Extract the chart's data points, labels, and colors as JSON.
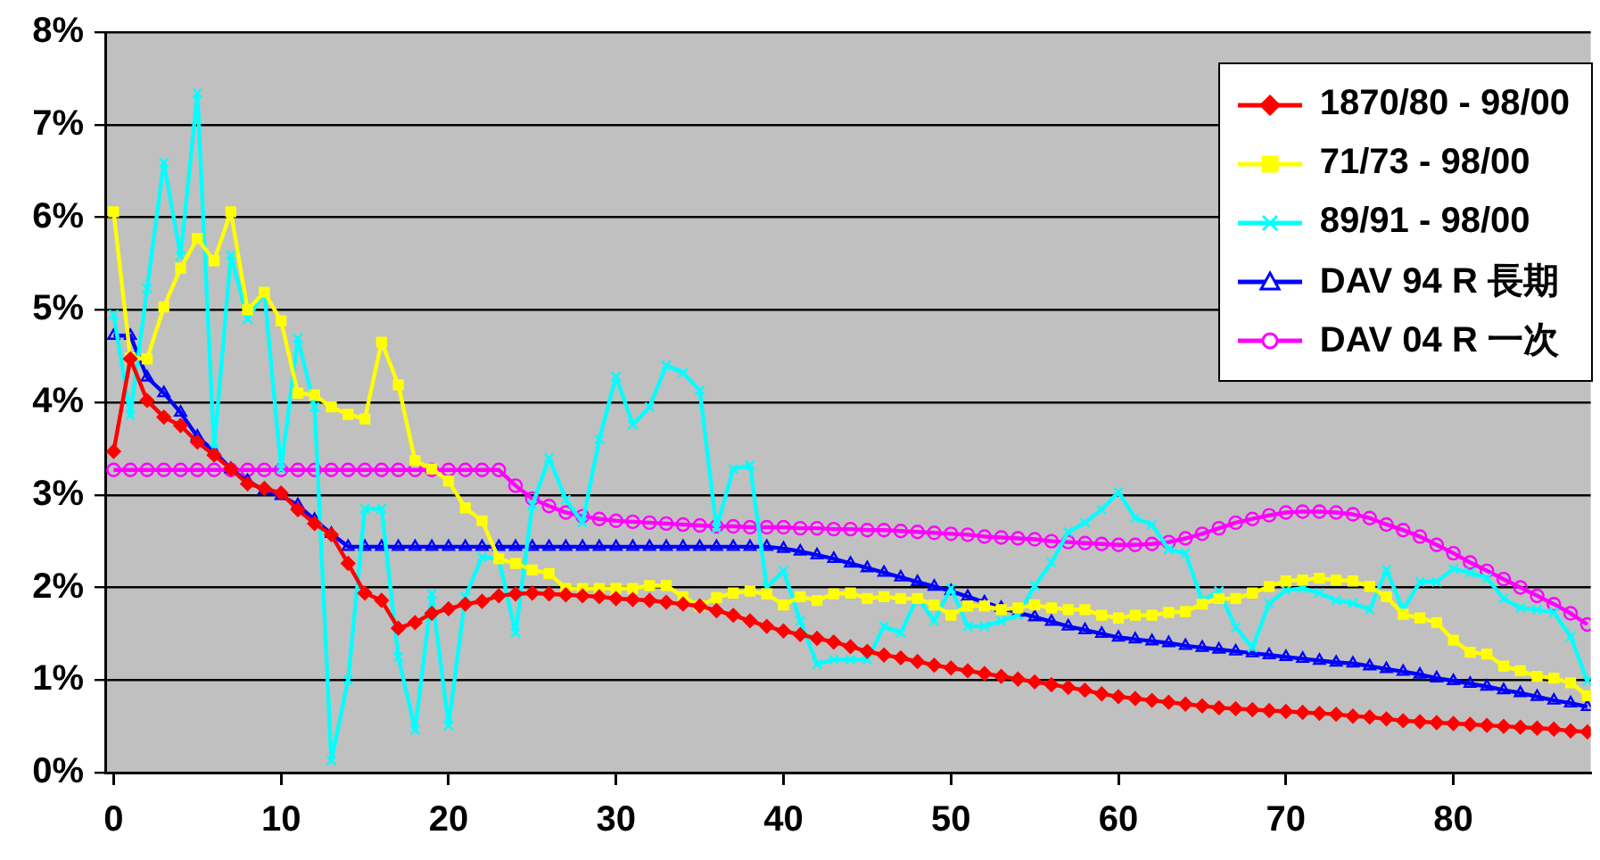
{
  "chart_data": {
    "type": "line",
    "x": [
      0,
      1,
      2,
      3,
      4,
      5,
      6,
      7,
      8,
      9,
      10,
      11,
      12,
      13,
      14,
      15,
      16,
      17,
      18,
      19,
      20,
      21,
      22,
      23,
      24,
      25,
      26,
      27,
      28,
      29,
      30,
      31,
      32,
      33,
      34,
      35,
      36,
      37,
      38,
      39,
      40,
      41,
      42,
      43,
      44,
      45,
      46,
      47,
      48,
      49,
      50,
      51,
      52,
      53,
      54,
      55,
      56,
      57,
      58,
      59,
      60,
      61,
      62,
      63,
      64,
      65,
      66,
      67,
      68,
      69,
      70,
      71,
      72,
      73,
      74,
      75,
      76,
      77,
      78,
      79,
      80,
      81,
      82,
      83,
      84,
      85,
      86,
      87,
      88
    ],
    "xlim": [
      -0.5,
      88.2
    ],
    "xticks": [
      0,
      10,
      20,
      30,
      40,
      50,
      60,
      70,
      80
    ],
    "ylim": [
      0,
      8
    ],
    "yticks": [
      {
        "value": 0,
        "label": "0%"
      },
      {
        "value": 1,
        "label": "1%"
      },
      {
        "value": 2,
        "label": "2%"
      },
      {
        "value": 3,
        "label": "3%"
      },
      {
        "value": 4,
        "label": "4%"
      },
      {
        "value": 5,
        "label": "5%"
      },
      {
        "value": 6,
        "label": "6%"
      },
      {
        "value": 7,
        "label": "7%"
      },
      {
        "value": 8,
        "label": "8%"
      }
    ],
    "grid": "y",
    "legend": "top right",
    "series": [
      {
        "name": "1870/80 - 98/00",
        "color": "#ff0000",
        "marker": "diamond",
        "values": [
          3.47,
          4.47,
          4.02,
          3.84,
          3.75,
          3.57,
          3.43,
          3.28,
          3.12,
          3.07,
          3.02,
          2.84,
          2.69,
          2.57,
          2.26,
          1.94,
          1.86,
          1.56,
          1.62,
          1.72,
          1.77,
          1.82,
          1.85,
          1.91,
          1.93,
          1.94,
          1.93,
          1.92,
          1.91,
          1.9,
          1.88,
          1.87,
          1.86,
          1.84,
          1.82,
          1.8,
          1.75,
          1.7,
          1.64,
          1.58,
          1.53,
          1.49,
          1.45,
          1.41,
          1.36,
          1.31,
          1.27,
          1.24,
          1.2,
          1.16,
          1.13,
          1.1,
          1.07,
          1.04,
          1.01,
          0.98,
          0.95,
          0.92,
          0.89,
          0.85,
          0.82,
          0.8,
          0.78,
          0.76,
          0.74,
          0.72,
          0.7,
          0.69,
          0.68,
          0.67,
          0.66,
          0.65,
          0.64,
          0.63,
          0.61,
          0.6,
          0.58,
          0.56,
          0.55,
          0.54,
          0.53,
          0.52,
          0.51,
          0.5,
          0.49,
          0.48,
          0.47,
          0.45,
          0.44
        ]
      },
      {
        "name": "71/73 - 98/00",
        "color": "#ffff00",
        "marker": "square",
        "values": [
          6.06,
          4.48,
          4.47,
          5.03,
          5.45,
          5.77,
          5.53,
          6.06,
          5.0,
          5.19,
          4.88,
          4.1,
          4.08,
          3.95,
          3.87,
          3.82,
          4.65,
          4.19,
          3.37,
          3.28,
          3.15,
          2.86,
          2.72,
          2.31,
          2.26,
          2.19,
          2.15,
          1.99,
          1.99,
          1.99,
          1.99,
          1.99,
          2.02,
          2.02,
          1.9,
          1.8,
          1.89,
          1.94,
          1.96,
          1.93,
          1.81,
          1.9,
          1.86,
          1.93,
          1.94,
          1.88,
          1.9,
          1.88,
          1.88,
          1.81,
          1.7,
          1.8,
          1.8,
          1.76,
          1.78,
          1.81,
          1.78,
          1.76,
          1.76,
          1.7,
          1.67,
          1.7,
          1.7,
          1.73,
          1.74,
          1.82,
          1.88,
          1.88,
          1.94,
          2.01,
          2.07,
          2.08,
          2.1,
          2.08,
          2.07,
          2.01,
          1.9,
          1.71,
          1.67,
          1.62,
          1.43,
          1.3,
          1.28,
          1.15,
          1.1,
          1.04,
          1.02,
          0.97,
          0.83
        ]
      },
      {
        "name": "89/91 - 98/00",
        "color": "#00ffff",
        "marker": "cross",
        "values": [
          4.95,
          3.86,
          5.23,
          6.59,
          5.58,
          7.34,
          3.5,
          5.59,
          4.9,
          5.19,
          3.28,
          4.69,
          3.95,
          0.13,
          1.0,
          2.85,
          2.85,
          1.25,
          0.46,
          1.93,
          0.51,
          1.9,
          2.33,
          2.31,
          1.51,
          2.89,
          3.4,
          2.95,
          2.7,
          3.6,
          4.28,
          3.76,
          3.95,
          4.4,
          4.32,
          4.13,
          2.64,
          3.28,
          3.32,
          2.0,
          2.18,
          1.64,
          1.17,
          1.22,
          1.22,
          1.22,
          1.58,
          1.51,
          1.89,
          1.64,
          1.99,
          1.58,
          1.58,
          1.64,
          1.7,
          2.02,
          2.27,
          2.6,
          2.7,
          2.84,
          3.03,
          2.75,
          2.68,
          2.41,
          2.37,
          1.86,
          1.96,
          1.57,
          1.35,
          1.83,
          1.97,
          1.99,
          1.94,
          1.86,
          1.83,
          1.76,
          2.19,
          1.76,
          2.06,
          2.06,
          2.2,
          2.16,
          2.1,
          1.88,
          1.78,
          1.76,
          1.73,
          1.47,
          0.99
        ]
      },
      {
        "name": "DAV 94 R 長期",
        "color": "#0000ff",
        "marker": "triangle",
        "values": [
          4.72,
          4.72,
          4.27,
          4.1,
          3.89,
          3.63,
          3.47,
          3.28,
          3.15,
          3.05,
          2.99,
          2.89,
          2.73,
          2.58,
          2.44,
          2.44,
          2.44,
          2.44,
          2.44,
          2.44,
          2.44,
          2.44,
          2.44,
          2.44,
          2.44,
          2.44,
          2.44,
          2.44,
          2.44,
          2.44,
          2.44,
          2.44,
          2.44,
          2.44,
          2.44,
          2.44,
          2.44,
          2.44,
          2.44,
          2.44,
          2.42,
          2.39,
          2.35,
          2.31,
          2.26,
          2.21,
          2.16,
          2.11,
          2.06,
          2.01,
          1.96,
          1.9,
          1.84,
          1.78,
          1.73,
          1.68,
          1.63,
          1.58,
          1.54,
          1.5,
          1.46,
          1.44,
          1.42,
          1.4,
          1.37,
          1.35,
          1.33,
          1.31,
          1.29,
          1.27,
          1.25,
          1.23,
          1.21,
          1.19,
          1.18,
          1.15,
          1.12,
          1.09,
          1.06,
          1.02,
          0.99,
          0.96,
          0.93,
          0.89,
          0.86,
          0.82,
          0.78,
          0.75,
          0.71
        ]
      },
      {
        "name": "DAV 04 R 一次",
        "color": "#ff00ff",
        "marker": "circle",
        "values": [
          3.27,
          3.27,
          3.27,
          3.27,
          3.27,
          3.27,
          3.27,
          3.27,
          3.27,
          3.27,
          3.27,
          3.27,
          3.27,
          3.27,
          3.27,
          3.27,
          3.27,
          3.27,
          3.27,
          3.27,
          3.27,
          3.27,
          3.27,
          3.27,
          3.1,
          2.96,
          2.88,
          2.81,
          2.77,
          2.74,
          2.72,
          2.71,
          2.7,
          2.69,
          2.68,
          2.67,
          2.66,
          2.66,
          2.65,
          2.65,
          2.65,
          2.64,
          2.64,
          2.63,
          2.63,
          2.62,
          2.62,
          2.61,
          2.6,
          2.59,
          2.58,
          2.57,
          2.55,
          2.54,
          2.53,
          2.52,
          2.5,
          2.49,
          2.48,
          2.47,
          2.46,
          2.46,
          2.47,
          2.49,
          2.53,
          2.58,
          2.64,
          2.7,
          2.74,
          2.78,
          2.81,
          2.82,
          2.82,
          2.81,
          2.79,
          2.75,
          2.68,
          2.62,
          2.55,
          2.46,
          2.37,
          2.27,
          2.18,
          2.09,
          2.0,
          1.91,
          1.82,
          1.72,
          1.6
        ]
      }
    ]
  }
}
